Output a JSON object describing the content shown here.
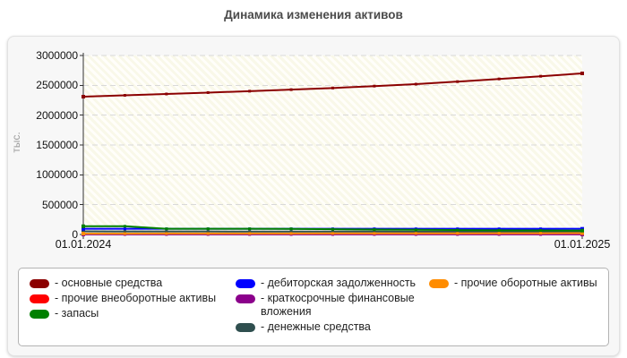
{
  "title": "Динамика изменения активов",
  "y_axis": {
    "label": "тыс.",
    "ticks": [
      "3000000",
      "2500000",
      "2000000",
      "1500000",
      "1000000",
      "500000",
      "0"
    ]
  },
  "x_axis": {
    "labels": [
      "01.01.2024",
      "01.01.2025"
    ]
  },
  "chart_data": {
    "type": "line",
    "title": "Динамика изменения активов",
    "ylabel": "тыс.",
    "ylim": [
      0,
      3000000
    ],
    "y_ticks": [
      500000,
      1000000,
      1500000,
      2000000,
      2500000,
      3000000
    ],
    "x_tick_labels": [
      "01.01.2024",
      "01.01.2025"
    ],
    "n_points": 13,
    "grid": "dashed horizontal",
    "legend_position": "bottom",
    "series": [
      {
        "name": "основные средства",
        "color": "#8B0000",
        "values": [
          2310000,
          2332000,
          2355000,
          2378000,
          2402000,
          2428000,
          2455000,
          2487000,
          2520000,
          2562000,
          2607000,
          2652000,
          2700000
        ]
      },
      {
        "name": "прочие внеоборотные активы",
        "color": "#FF0000",
        "values": [
          8000,
          8000,
          8000,
          8000,
          8000,
          8000,
          8000,
          8000,
          8000,
          8000,
          8000,
          8000,
          8000
        ]
      },
      {
        "name": "запасы",
        "color": "#008000",
        "values": [
          138000,
          138000,
          95000,
          95000,
          95000,
          94000,
          88000,
          82000,
          78000,
          74000,
          70000,
          67000,
          65000
        ]
      },
      {
        "name": "дебиторская задолженность",
        "color": "#0000FF",
        "values": [
          95000,
          95000,
          95000,
          95000,
          95000,
          95000,
          95000,
          95000,
          95000,
          95000,
          95000,
          95000,
          95000
        ]
      },
      {
        "name": "краткосрочные финансовые вложения",
        "color": "#8B008B",
        "values": [
          1000,
          1000,
          1000,
          1000,
          1000,
          1000,
          1000,
          1000,
          1000,
          1000,
          1000,
          1000,
          1000
        ]
      },
      {
        "name": "денежные средства",
        "color": "#2F4F4F",
        "values": [
          52000,
          51000,
          50000,
          50000,
          49000,
          49000,
          48000,
          48000,
          47000,
          47000,
          47000,
          46000,
          46000
        ]
      },
      {
        "name": "прочие оборотные активы",
        "color": "#FF8C00",
        "values": [
          15000,
          15000,
          16000,
          16000,
          17000,
          17000,
          18000,
          18000,
          19000,
          19000,
          20000,
          21000,
          22000
        ]
      }
    ]
  },
  "legend": {
    "columns": [
      {
        "items": [
          {
            "label": "- основные средства",
            "color": "#8B0000"
          },
          {
            "label": "- прочие внеоборотные активы",
            "color": "#FF0000"
          },
          {
            "label": "- запасы",
            "color": "#008000"
          }
        ]
      },
      {
        "items": [
          {
            "label": "- дебиторская задолженность",
            "color": "#0000FF"
          },
          {
            "label": "- краткосрочные финансовые вложения",
            "color": "#8B008B"
          },
          {
            "label": "- денежные средства",
            "color": "#2F4F4F"
          }
        ]
      },
      {
        "items": [
          {
            "label": "- прочие оборотные активы",
            "color": "#FF8C00"
          }
        ]
      }
    ]
  },
  "colors": {
    "panel_bg": "#f7f7f7",
    "plot_bg": "#f9f8e9",
    "gridline": "#d9d9d9",
    "axis": "#333333",
    "title_text": "#4a4a4a",
    "axis_unit_text": "#9a9a9a"
  }
}
